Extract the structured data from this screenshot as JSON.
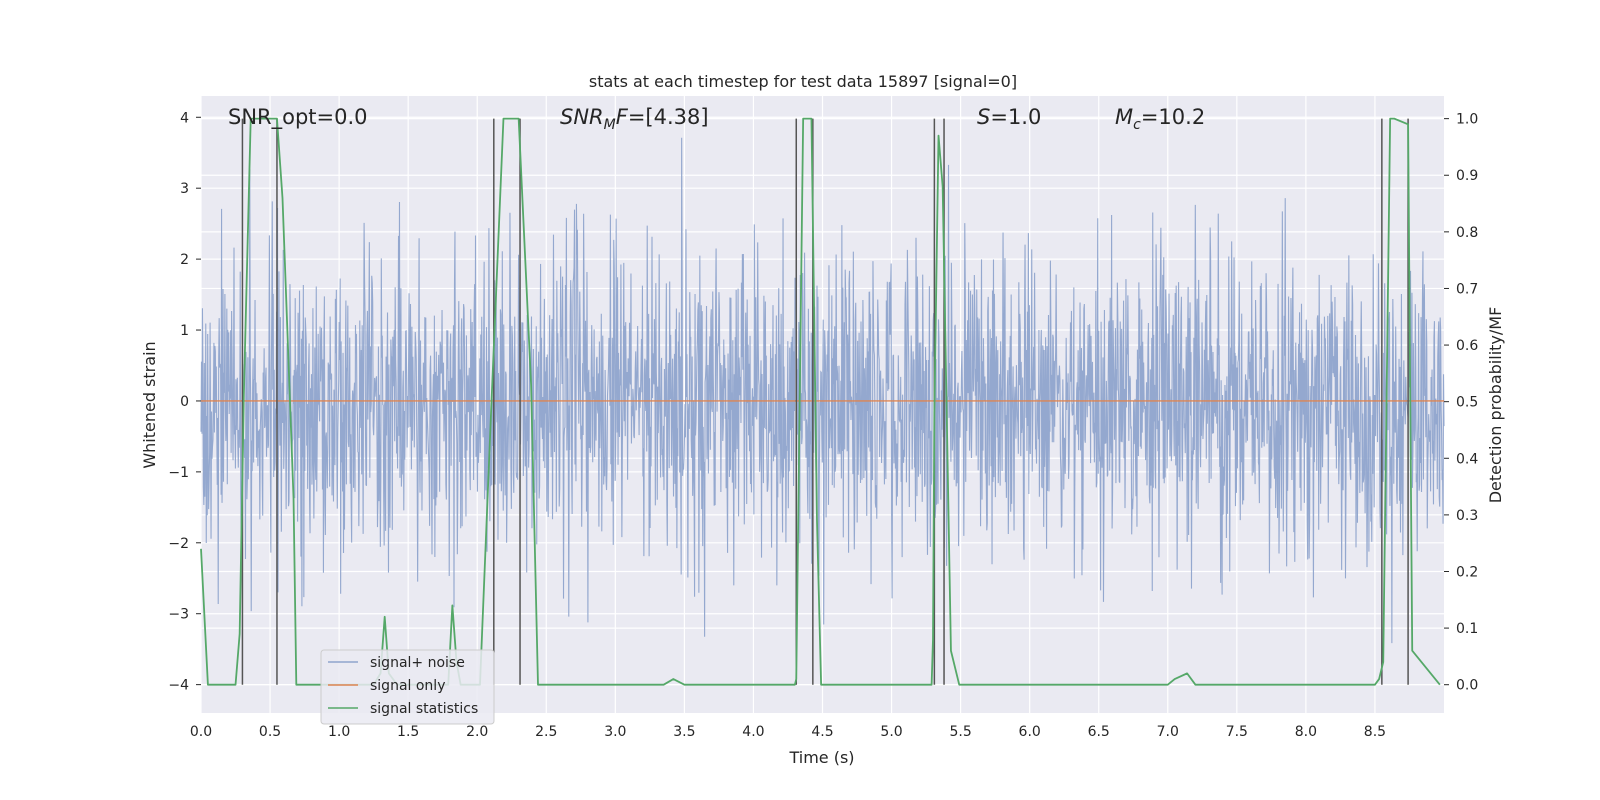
{
  "chart_data": {
    "type": "line",
    "title": "stats at each timestep for test data 15897 [signal=0]",
    "xlabel": "Time (s)",
    "ylabel": "Whitened strain",
    "y2label": "Detection probability/MF",
    "xlim": [
      0.0,
      9.0
    ],
    "ylim": [
      -4.4,
      4.3
    ],
    "y2lim": [
      -0.05,
      1.04
    ],
    "xticks": [
      "0.0",
      "0.5",
      "1.0",
      "1.5",
      "2.0",
      "2.5",
      "3.0",
      "3.5",
      "4.0",
      "4.5",
      "5.0",
      "5.5",
      "6.0",
      "6.5",
      "7.0",
      "7.5",
      "8.0",
      "8.5"
    ],
    "yticks": [
      "4",
      "3",
      "2",
      "1",
      "0",
      "−1",
      "−2",
      "−3",
      "−4"
    ],
    "y2ticks": [
      "1.0",
      "0.9",
      "0.8",
      "0.7",
      "0.6",
      "0.5",
      "0.4",
      "0.3",
      "0.2",
      "0.1",
      "0.0"
    ],
    "annotations": [
      {
        "label": "SNR_opt=0.0",
        "x": 0.2
      },
      {
        "label": "SNR_MF=[4.38]",
        "x": 2.6
      },
      {
        "label": "S=1.0",
        "x": 5.6
      },
      {
        "label": "M_c=10.2",
        "x": 6.6
      }
    ],
    "legend": {
      "position": "lower-left",
      "entries": [
        "signal+ noise",
        "signal only",
        "signal statistics"
      ]
    },
    "colors": {
      "noise": "#8fa4cc",
      "signal": "#dd8452",
      "stats": "#55a868",
      "vlines": "#555555",
      "panel": "#eaeaf2",
      "grid": "#ffffff"
    },
    "vlines": [
      0.3,
      0.55,
      2.12,
      2.31,
      4.31,
      4.43,
      5.31,
      5.38,
      8.55,
      8.74
    ],
    "series": [
      {
        "name": "signal statistics",
        "axis": "right",
        "x": [
          0.0,
          0.05,
          0.25,
          0.28,
          0.31,
          0.36,
          0.55,
          0.59,
          0.67,
          0.69,
          0.95,
          1.02,
          1.09,
          1.16,
          1.25,
          1.3,
          1.33,
          1.36,
          1.42,
          1.72,
          1.79,
          1.82,
          1.85,
          1.88,
          2.02,
          2.1,
          2.19,
          2.3,
          2.39,
          2.44,
          3.35,
          3.42,
          3.5,
          4.3,
          4.31,
          4.36,
          4.42,
          4.46,
          4.49,
          4.8,
          5.29,
          5.3,
          5.31,
          5.34,
          5.37,
          5.43,
          5.49,
          5.51,
          5.55,
          7.0,
          7.05,
          7.14,
          7.2,
          7.3,
          8.5,
          8.53,
          8.56,
          8.61,
          8.64,
          8.74,
          8.77,
          8.97
        ],
        "values": [
          0.24,
          0.0,
          0.0,
          0.09,
          0.51,
          1.0,
          1.0,
          0.86,
          0.33,
          0.0,
          0.0,
          0.0,
          0.0,
          0.0,
          0.0,
          0.02,
          0.12,
          0.02,
          0.0,
          0.0,
          0.0,
          0.14,
          0.04,
          0.0,
          0.0,
          0.48,
          1.0,
          1.0,
          0.53,
          0.0,
          0.0,
          0.01,
          0.0,
          0.0,
          0.01,
          1.0,
          1.0,
          0.29,
          0.0,
          0.0,
          0.0,
          0.08,
          0.48,
          0.97,
          0.88,
          0.06,
          0.0,
          0.0,
          0.0,
          0.0,
          0.01,
          0.02,
          0.0,
          0.0,
          0.0,
          0.01,
          0.04,
          1.0,
          1.0,
          0.99,
          0.06,
          0.0
        ]
      },
      {
        "name": "signal only",
        "axis": "left",
        "x": [
          0.0,
          9.0
        ],
        "values": [
          0.0,
          0.0
        ]
      }
    ],
    "noise_profile": {
      "name": "signal+ noise",
      "axis": "left",
      "description_note": "dense noise trace, typical envelope",
      "typical_peak_abs": [
        3.8,
        3.8
      ],
      "x_range": [
        0.0,
        9.0
      ]
    }
  }
}
